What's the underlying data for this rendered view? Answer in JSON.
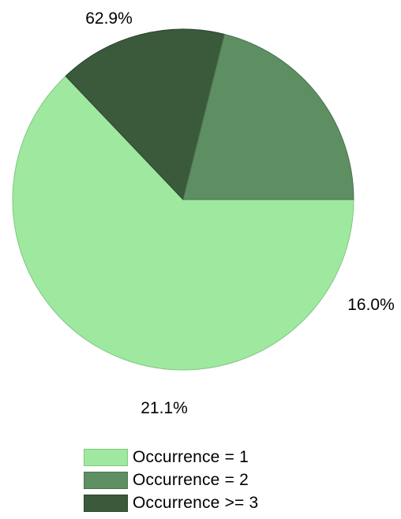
{
  "chart_data": {
    "type": "pie",
    "slices": [
      {
        "name": "Occurrence = 1",
        "value": 62.9,
        "label": "62.9%",
        "color": "#9fe8a0",
        "border": "#7fc880"
      },
      {
        "name": "Occurrence >= 3",
        "value": 16.0,
        "label": "16.0%",
        "color": "#3b5a3c",
        "border": "#2a422b"
      },
      {
        "name": "Occurrence = 2",
        "value": 21.1,
        "label": "21.1%",
        "color": "#5d8f62",
        "border": "#4a744e"
      }
    ],
    "start_angle": "3 o'clock",
    "direction": "clockwise",
    "legend_position": "bottom",
    "legend_items": [
      {
        "label": "Occurrence = 1",
        "color": "#9fe8a0",
        "border": "#7fc880"
      },
      {
        "label": "Occurrence = 2",
        "color": "#5d8f62",
        "border": "#4a744e"
      },
      {
        "label": "Occurrence >= 3",
        "color": "#3b5a3c",
        "border": "#2a422b"
      }
    ]
  }
}
